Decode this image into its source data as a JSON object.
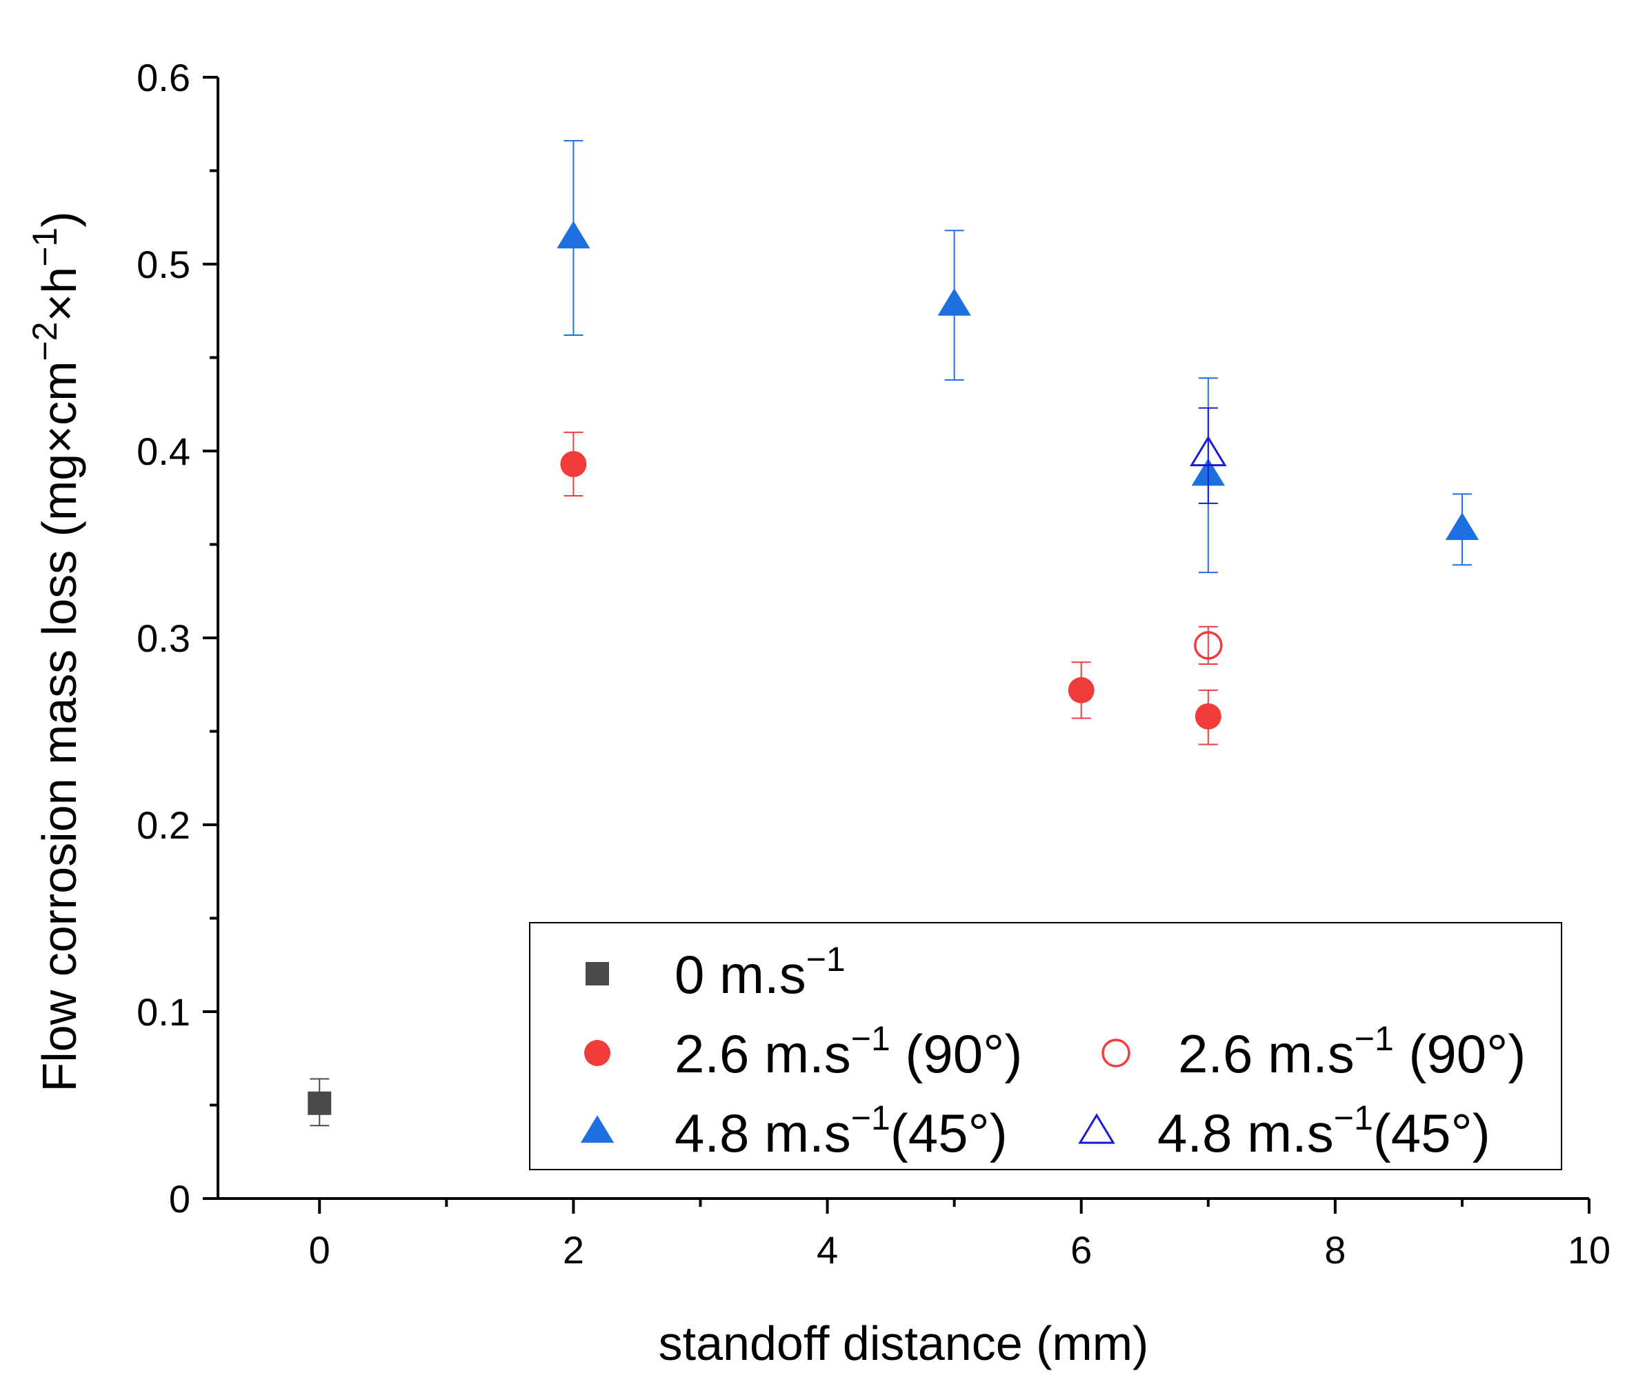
{
  "chart_data": {
    "type": "scatter",
    "xlabel": "standoff distance (mm)",
    "ylabel_main": "Flow corrosion mass loss (mg×cm",
    "ylabel_sup1": "−2",
    "ylabel_mid": "×h",
    "ylabel_sup2": "−1",
    "ylabel_end": ")",
    "xlim": [
      -0.8,
      10
    ],
    "ylim": [
      0,
      0.6
    ],
    "x_ticks": [
      0,
      2,
      4,
      6,
      8,
      10
    ],
    "x_tick_labels": [
      "0",
      "2",
      "4",
      "6",
      "8",
      "10"
    ],
    "y_ticks": [
      0,
      0.1,
      0.2,
      0.3,
      0.4,
      0.5,
      0.6
    ],
    "y_tick_labels": [
      "0",
      "0.1",
      "0.2",
      "0.3",
      "0.4",
      "0.5",
      "0.6"
    ],
    "legend_position": "bottom-right",
    "series": [
      {
        "name": "0 m.s−1",
        "marker": "square",
        "filled": true,
        "color": "#4a4a4a",
        "points": [
          {
            "x": 0,
            "y": 0.051,
            "err_low": 0.012,
            "err_high": 0.013
          }
        ]
      },
      {
        "name": "2.6 m.s−1 (90°)",
        "marker": "circle",
        "filled": true,
        "color": "#f23c3c",
        "points": [
          {
            "x": 2,
            "y": 0.393,
            "err_low": 0.017,
            "err_high": 0.017
          },
          {
            "x": 6,
            "y": 0.272,
            "err_low": 0.015,
            "err_high": 0.015
          },
          {
            "x": 7,
            "y": 0.258,
            "err_low": 0.015,
            "err_high": 0.014
          }
        ]
      },
      {
        "name": "4.8 m.s−1 (45°)",
        "marker": "triangle",
        "filled": true,
        "color": "#1e6fe0",
        "points": [
          {
            "x": 2,
            "y": 0.514,
            "err_low": 0.052,
            "err_high": 0.052
          },
          {
            "x": 5,
            "y": 0.478,
            "err_low": 0.04,
            "err_high": 0.04
          },
          {
            "x": 7,
            "y": 0.387,
            "err_low": 0.052,
            "err_high": 0.052
          },
          {
            "x": 9,
            "y": 0.358,
            "err_low": 0.019,
            "err_high": 0.019
          }
        ]
      },
      {
        "name": "2.6 m.s−1 (90°)",
        "marker": "circle",
        "filled": false,
        "color": "#f23c3c",
        "points": [
          {
            "x": 7,
            "y": 0.296,
            "err_low": 0.01,
            "err_high": 0.01
          }
        ]
      },
      {
        "name": "4.8 m.s−1 (45°)",
        "marker": "triangle",
        "filled": false,
        "color": "#1a1ad6",
        "points": [
          {
            "x": 7,
            "y": 0.398,
            "err_low": 0.026,
            "err_high": 0.025
          }
        ]
      }
    ],
    "legend": [
      {
        "marker": "square",
        "filled": true,
        "color": "#4a4a4a",
        "label_main": "0 m.s",
        "label_sup": "−1",
        "label_rest": ""
      },
      {
        "marker": "circle",
        "filled": true,
        "color": "#f23c3c",
        "label_main": "2.6 m.s",
        "label_sup": "−1",
        "label_rest": " (90°)"
      },
      {
        "marker": "triangle",
        "filled": true,
        "color": "#1e6fe0",
        "label_main": "4.8 m.s",
        "label_sup": "−1",
        "label_rest": "(45°)"
      },
      {
        "marker": "circle",
        "filled": false,
        "color": "#f23c3c",
        "label_main": "2.6 m.s",
        "label_sup": "−1",
        "label_rest": "  (90°)"
      },
      {
        "marker": "triangle",
        "filled": false,
        "color": "#1a1ad6",
        "label_main": "4.8 m.s",
        "label_sup": "−1",
        "label_rest": "(45°)"
      }
    ]
  }
}
